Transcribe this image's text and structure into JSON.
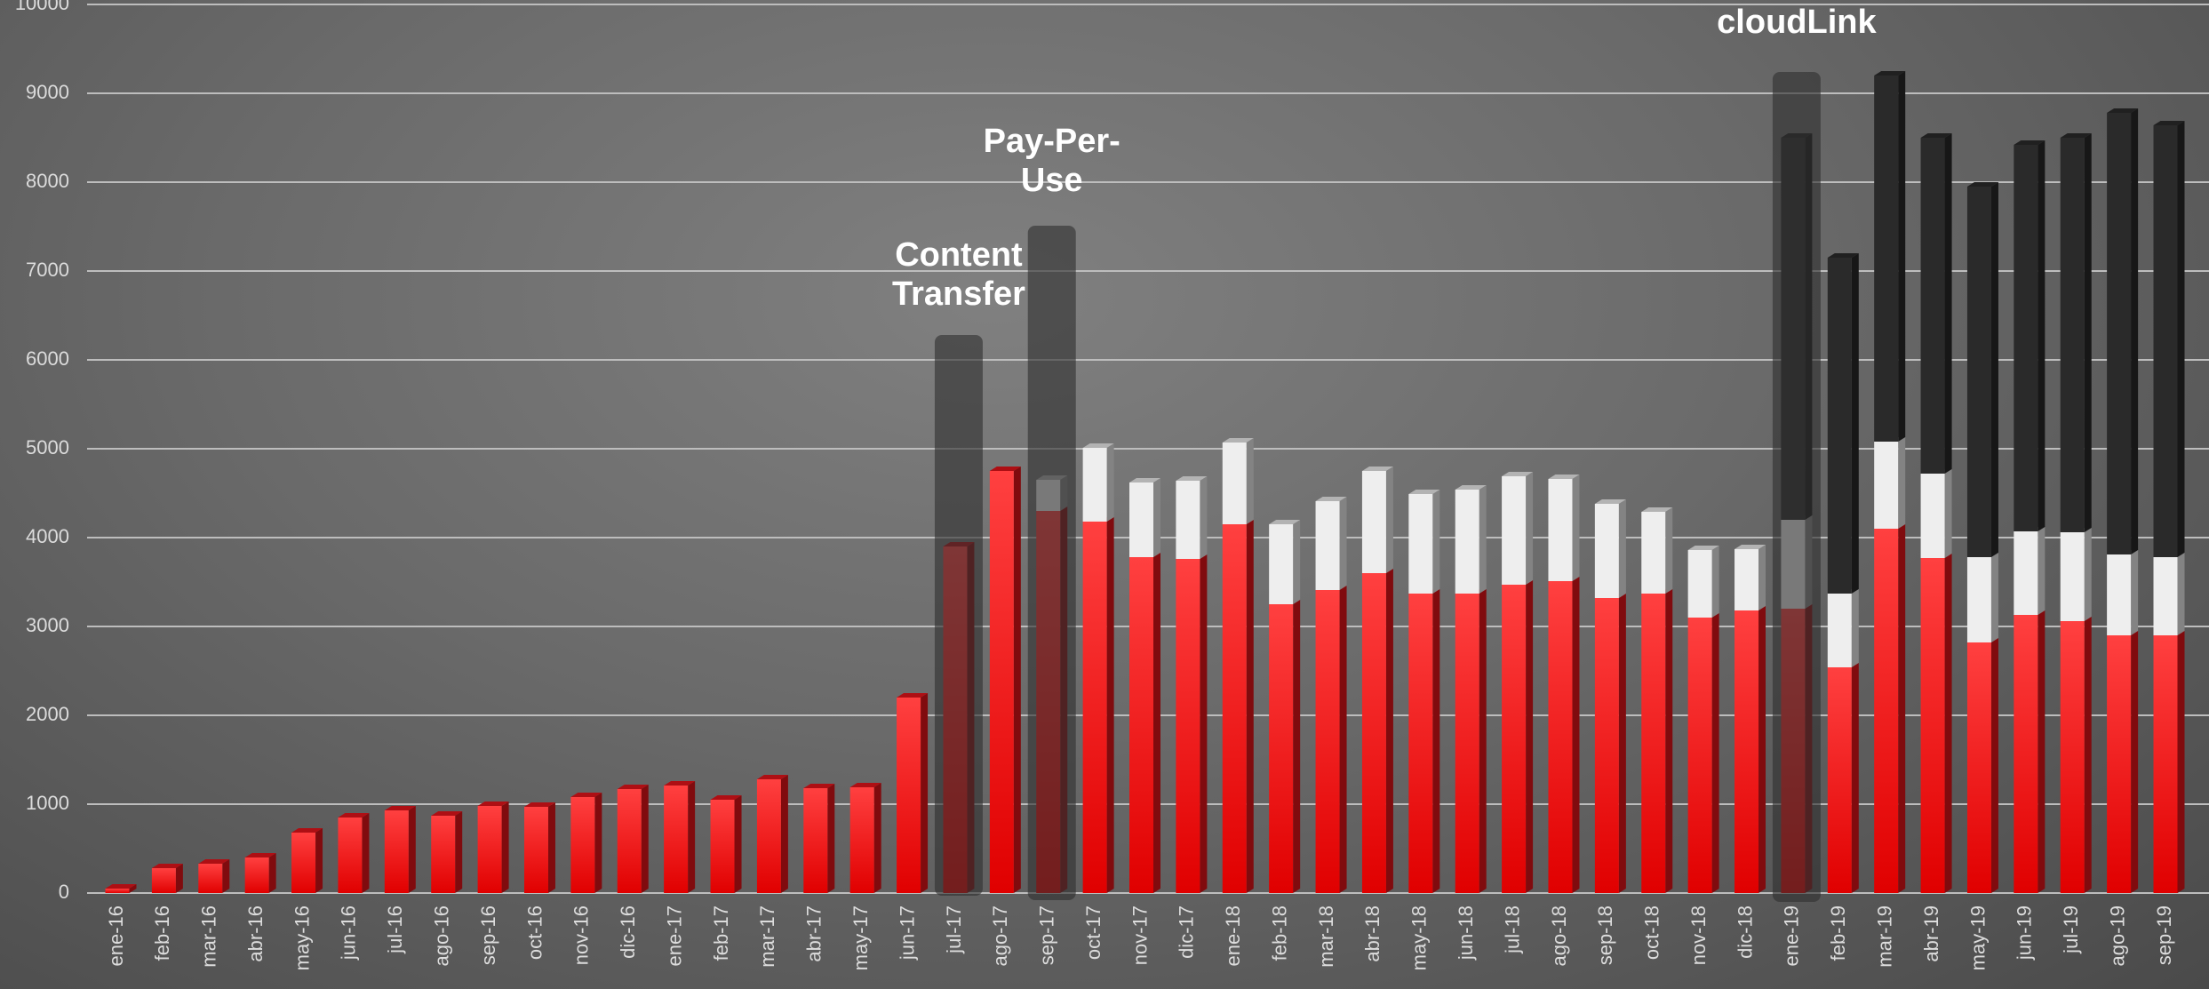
{
  "chart_data": {
    "type": "stacked_bar",
    "categories": [
      "ene-16",
      "feb-16",
      "mar-16",
      "abr-16",
      "may-16",
      "jun-16",
      "jul-16",
      "ago-16",
      "sep-16",
      "oct-16",
      "nov-16",
      "dic-16",
      "ene-17",
      "feb-17",
      "mar-17",
      "abr-17",
      "may-17",
      "jun-17",
      "jul-17",
      "ago-17",
      "sep-17",
      "oct-17",
      "nov-17",
      "dic-17",
      "ene-18",
      "feb-18",
      "mar-18",
      "abr-18",
      "may-18",
      "jun-18",
      "jul-18",
      "ago-18",
      "sep-18",
      "oct-18",
      "nov-18",
      "dic-18",
      "ene-19",
      "feb-19",
      "mar-19",
      "abr-19",
      "may-19",
      "jun-19",
      "jul-19",
      "ago-19",
      "sep-19"
    ],
    "series": [
      {
        "color": "#e8141a",
        "values": [
          50,
          280,
          330,
          400,
          680,
          850,
          930,
          870,
          980,
          970,
          1080,
          1170,
          1210,
          1050,
          1280,
          1180,
          1190,
          2200,
          3900,
          4750,
          4300,
          4180,
          3780,
          3760,
          4150,
          3250,
          3410,
          3600,
          3370,
          3370,
          3470,
          3510,
          3320,
          3370,
          3100,
          3180,
          3200,
          2540,
          4100,
          3770,
          2820,
          3130,
          3060,
          2900,
          2900
        ]
      },
      {
        "color": "#eeeeee",
        "values": [
          null,
          null,
          null,
          null,
          null,
          null,
          null,
          null,
          null,
          null,
          null,
          null,
          null,
          null,
          null,
          null,
          null,
          null,
          null,
          null,
          350,
          830,
          840,
          880,
          920,
          900,
          1000,
          1150,
          1120,
          1170,
          1220,
          1150,
          1060,
          920,
          760,
          690,
          1000,
          830,
          980,
          950,
          960,
          940,
          1000,
          910,
          880
        ]
      },
      {
        "color": "#2a2a2a",
        "values": [
          null,
          null,
          null,
          null,
          null,
          null,
          null,
          null,
          null,
          null,
          null,
          null,
          null,
          null,
          null,
          null,
          null,
          null,
          null,
          null,
          null,
          null,
          null,
          null,
          null,
          null,
          null,
          null,
          null,
          null,
          null,
          null,
          null,
          null,
          null,
          null,
          4300,
          3780,
          4120,
          3780,
          4170,
          4350,
          4440,
          4970,
          4860
        ]
      }
    ],
    "ylim": [
      0,
      10000
    ],
    "yticks": [
      0,
      1000,
      2000,
      3000,
      4000,
      5000,
      6000,
      7000,
      8000,
      9000,
      10000
    ],
    "grid": true,
    "annotations": [
      {
        "text": "Content Transfer",
        "category": "jul-17"
      },
      {
        "text": "Pay-Per-Use",
        "category": "sep-17"
      },
      {
        "text": "cloudLink",
        "category": "ene-19"
      }
    ]
  }
}
